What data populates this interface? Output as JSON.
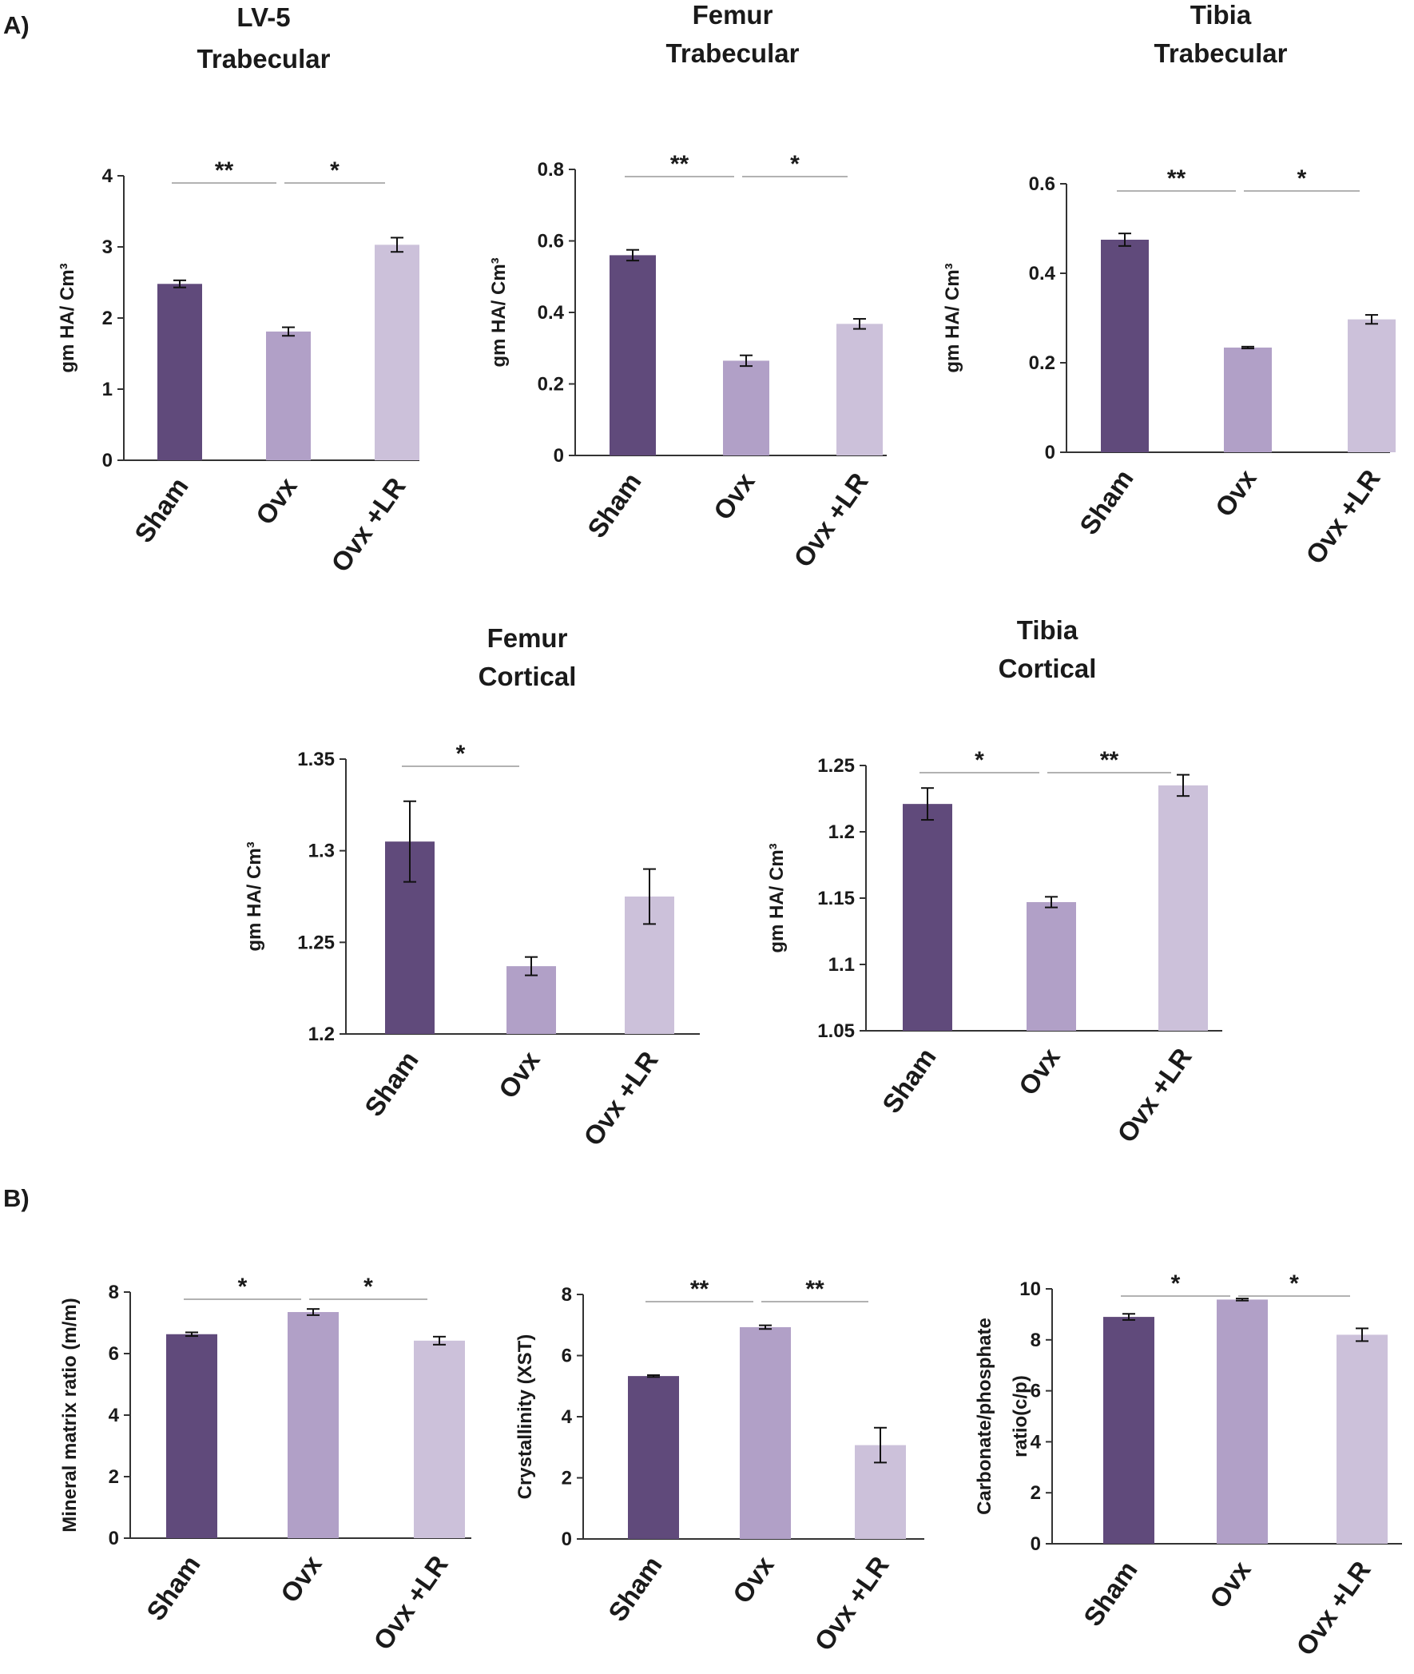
{
  "panel_labels": [
    "A)",
    "B)"
  ],
  "colors": {
    "sham": "#604a7b",
    "ovx": "#b1a0c7",
    "ovx_lr": "#ccc1da",
    "axis": "#333333",
    "sig_line": "#999999"
  },
  "chart_data": [
    {
      "type": "bar",
      "title_lines": [
        "LV-5",
        "Trabecular"
      ],
      "ylabel": "gm HA/ Cm³",
      "categories": [
        "Sham",
        "Ovx",
        "Ovx +LR"
      ],
      "values": [
        2.48,
        1.81,
        3.03
      ],
      "errors": [
        0.05,
        0.06,
        0.1
      ],
      "ylim": [
        0,
        4
      ],
      "yticks": [
        "0",
        "1",
        "2",
        "3",
        "4"
      ],
      "significance": [
        {
          "from": 0,
          "to": 1,
          "label": "**"
        },
        {
          "from": 1,
          "to": 2,
          "label": "*"
        }
      ]
    },
    {
      "type": "bar",
      "title_lines": [
        "Femur",
        "Trabecular"
      ],
      "ylabel": "gm HA/ Cm³",
      "categories": [
        "Sham",
        "Ovx",
        "Ovx +LR"
      ],
      "values": [
        0.56,
        0.265,
        0.368
      ],
      "errors": [
        0.015,
        0.015,
        0.014
      ],
      "ylim": [
        0,
        0.8
      ],
      "yticks": [
        "0",
        "0.2",
        "0.4",
        "0.6",
        "0.8"
      ],
      "significance": [
        {
          "from": 0,
          "to": 1,
          "label": "**"
        },
        {
          "from": 1,
          "to": 2,
          "label": "*"
        }
      ]
    },
    {
      "type": "bar",
      "title_lines": [
        "Tibia",
        "Trabecular"
      ],
      "ylabel": "gm HA/ Cm³",
      "categories": [
        "Sham",
        "Ovx",
        "Ovx +LR"
      ],
      "values": [
        0.475,
        0.234,
        0.297
      ],
      "errors": [
        0.014,
        0.002,
        0.01
      ],
      "ylim": [
        0,
        0.6
      ],
      "yticks": [
        "0",
        "0.2",
        "0.4",
        "0.6"
      ],
      "significance": [
        {
          "from": 0,
          "to": 1,
          "label": "**"
        },
        {
          "from": 1,
          "to": 2,
          "label": "*"
        }
      ]
    },
    {
      "type": "bar",
      "title_lines": [
        "Femur",
        "Cortical"
      ],
      "ylabel": "gm HA/ Cm³",
      "categories": [
        "Sham",
        "Ovx",
        "Ovx +LR"
      ],
      "values": [
        1.305,
        1.237,
        1.275
      ],
      "errors": [
        0.022,
        0.005,
        0.015
      ],
      "ylim": [
        1.2,
        1.35
      ],
      "yticks": [
        "1.2",
        "1.25",
        "1.3",
        "1.35"
      ],
      "significance": [
        {
          "from": 0,
          "to": 1,
          "label": "*"
        }
      ]
    },
    {
      "type": "bar",
      "title_lines": [
        "Tibia",
        "Cortical"
      ],
      "ylabel": "gm HA/ Cm³",
      "categories": [
        "Sham",
        "Ovx",
        "Ovx +LR"
      ],
      "values": [
        1.221,
        1.147,
        1.235
      ],
      "errors": [
        0.012,
        0.004,
        0.008
      ],
      "ylim": [
        1.05,
        1.25
      ],
      "yticks": [
        "1.05",
        "1.1",
        "1.15",
        "1.2",
        "1.25"
      ],
      "significance": [
        {
          "from": 0,
          "to": 1,
          "label": "*"
        },
        {
          "from": 1,
          "to": 2,
          "label": "**"
        }
      ]
    },
    {
      "type": "bar",
      "title_lines": [],
      "ylabel": "Mineral matrix ratio (m/m)",
      "categories": [
        "Sham",
        "Ovx",
        "Ovx +LR"
      ],
      "values": [
        6.63,
        7.35,
        6.42
      ],
      "errors": [
        0.06,
        0.1,
        0.13
      ],
      "ylim": [
        0,
        8
      ],
      "yticks": [
        "0",
        "2",
        "4",
        "6",
        "8"
      ],
      "significance": [
        {
          "from": 0,
          "to": 1,
          "label": "*"
        },
        {
          "from": 1,
          "to": 2,
          "label": "*"
        }
      ]
    },
    {
      "type": "bar",
      "title_lines": [],
      "ylabel": "Crystallinity (XST)",
      "categories": [
        "Sham",
        "Ovx",
        "Ovx +LR"
      ],
      "values": [
        5.33,
        6.93,
        3.07
      ],
      "errors": [
        0.03,
        0.06,
        0.57
      ],
      "ylim": [
        0,
        8
      ],
      "yticks": [
        "0",
        "2",
        "4",
        "6",
        "8"
      ],
      "significance": [
        {
          "from": 0,
          "to": 1,
          "label": "**"
        },
        {
          "from": 1,
          "to": 2,
          "label": "**"
        }
      ]
    },
    {
      "type": "bar",
      "title_lines": [],
      "ylabel_lines": [
        "Carbonate/phosphate",
        "ratio(c/p)"
      ],
      "categories": [
        "Sham",
        "Ovx",
        "Ovx +LR"
      ],
      "values": [
        8.9,
        9.58,
        8.2
      ],
      "errors": [
        0.12,
        0.04,
        0.25
      ],
      "ylim": [
        0,
        10
      ],
      "yticks": [
        "0",
        "2",
        "4",
        "6",
        "8",
        "10"
      ],
      "significance": [
        {
          "from": 0,
          "to": 1,
          "label": "*"
        },
        {
          "from": 1,
          "to": 2,
          "label": "*"
        }
      ]
    }
  ]
}
